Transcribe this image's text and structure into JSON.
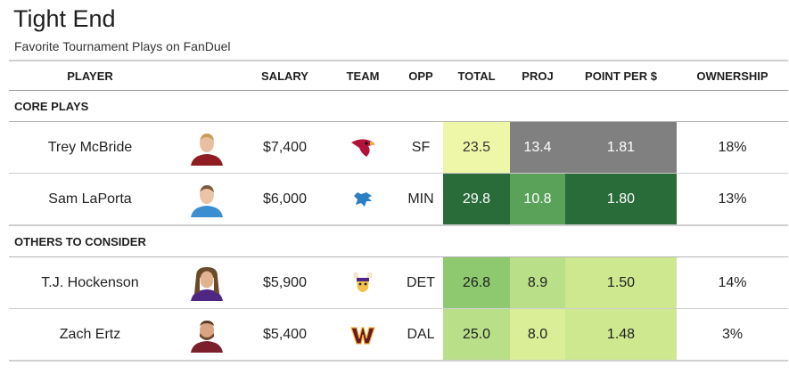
{
  "title": "Tight End",
  "subtitle": "Favorite Tournament Plays on FanDuel",
  "columns": {
    "player": "PLAYER",
    "salary": "SALARY",
    "team": "TEAM",
    "opp": "OPP",
    "total": "TOTAL",
    "proj": "PROJ",
    "ppd": "POINT PER $",
    "own": "OWNERSHIP"
  },
  "groups": [
    {
      "label": "CORE PLAYS",
      "players": [
        {
          "name": "Trey McBride",
          "salary": "$7,400",
          "team_icon": "cardinals-logo-icon",
          "opp": "SF",
          "total": "23.5",
          "proj": "13.4",
          "ppd": "1.81",
          "own": "18%"
        },
        {
          "name": "Sam LaPorta",
          "salary": "$6,000",
          "team_icon": "lions-logo-icon",
          "opp": "MIN",
          "total": "29.8",
          "proj": "10.8",
          "ppd": "1.80",
          "own": "13%"
        }
      ]
    },
    {
      "label": "OTHERS TO CONSIDER",
      "players": [
        {
          "name": "T.J. Hockenson",
          "salary": "$5,900",
          "team_icon": "vikings-logo-icon",
          "opp": "DET",
          "total": "26.8",
          "proj": "8.9",
          "ppd": "1.50",
          "own": "14%"
        },
        {
          "name": "Zach Ertz",
          "salary": "$5,400",
          "team_icon": "commanders-logo-icon",
          "opp": "DAL",
          "total": "25.0",
          "proj": "8.0",
          "ppd": "1.48",
          "own": "3%"
        }
      ]
    }
  ],
  "colors": {
    "heat_dark_green": "#2a6b3a",
    "heat_green": "#5aa15a",
    "heat_gray": "#808080",
    "heat_light_yellow": "#eef7a8"
  }
}
